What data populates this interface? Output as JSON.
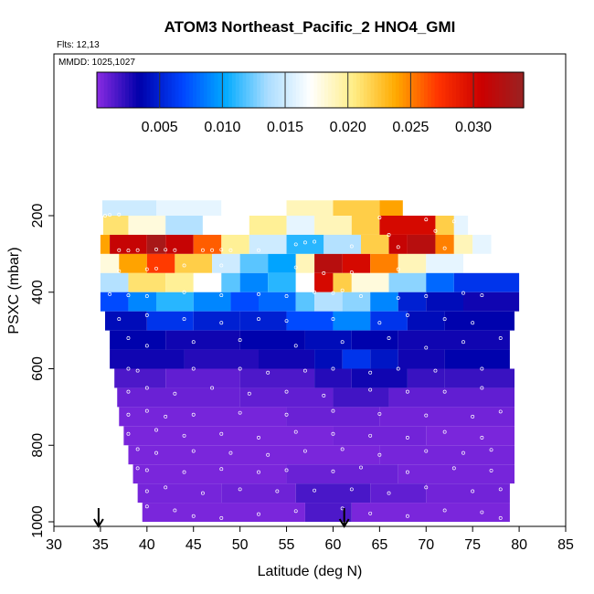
{
  "chart_data": {
    "type": "heatmap",
    "title": "ATOM3 Northeast_Pacific_2 HNO4_GMI",
    "annotations": {
      "flights": "Flts: 12,13",
      "dates": "MMDD: 1025,1027"
    },
    "xlabel": "Latitude (deg N)",
    "ylabel": "PSXC (mbar)",
    "xlim": [
      30,
      85
    ],
    "ylim": [
      1000,
      40
    ],
    "y_reversed": true,
    "x_ticks": [
      30,
      35,
      40,
      45,
      50,
      55,
      60,
      65,
      70,
      75,
      80,
      85
    ],
    "x_tick_labels": [
      "30",
      "35",
      "40",
      "45",
      "50",
      "55",
      "60",
      "65",
      "70",
      "75",
      "80",
      "85"
    ],
    "y_ticks": [
      200,
      400,
      600,
      800,
      1000
    ],
    "y_tick_labels": [
      "200",
      "400",
      "600",
      "800",
      "1000"
    ],
    "colorbar": {
      "range": [
        0,
        0.034
      ],
      "ticks": [
        0.005,
        0.01,
        0.015,
        0.02,
        0.025,
        0.03
      ],
      "tick_labels": [
        "0.005",
        "0.010",
        "0.015",
        "0.020",
        "0.025",
        "0.030"
      ],
      "colors": [
        "#8a2be2",
        "#0000aa",
        "#0044ff",
        "#00aaff",
        "#aaddff",
        "#ffffff",
        "#ffee88",
        "#ffaa00",
        "#ff3300",
        "#cc0000",
        "#992222"
      ]
    },
    "arrows_at_latitude": [
      34.8,
      61.2
    ],
    "rows": [
      {
        "p_top": 160,
        "p_bot": 200,
        "segments": [
          [
            35.2,
            41,
            0.015
          ],
          [
            41,
            48,
            0.016
          ],
          [
            48,
            55,
            0.017
          ],
          [
            55,
            60,
            0.019
          ],
          [
            60,
            65,
            0.022
          ],
          [
            65,
            67.5,
            0.024
          ]
        ]
      },
      {
        "p_top": 200,
        "p_bot": 250,
        "segments": [
          [
            35.3,
            38,
            0.021
          ],
          [
            38,
            42,
            0.018
          ],
          [
            42,
            46,
            0.014
          ],
          [
            46,
            51,
            0.017
          ],
          [
            51,
            55,
            0.02
          ],
          [
            55,
            58,
            0.016
          ],
          [
            58,
            62,
            0.019
          ],
          [
            62,
            65,
            0.022
          ],
          [
            65,
            71,
            0.03
          ],
          [
            71,
            73,
            0.022
          ],
          [
            73,
            74.5,
            0.016
          ]
        ]
      },
      {
        "p_top": 250,
        "p_bot": 300,
        "segments": [
          [
            35,
            36,
            0.024
          ],
          [
            36,
            40,
            0.031
          ],
          [
            40,
            42,
            0.033
          ],
          [
            42,
            45,
            0.031
          ],
          [
            45,
            48,
            0.026
          ],
          [
            48,
            51,
            0.02
          ],
          [
            51,
            55,
            0.015
          ],
          [
            55,
            59,
            0.011
          ],
          [
            59,
            63,
            0.014
          ],
          [
            63,
            66,
            0.022
          ],
          [
            66,
            68,
            0.031
          ],
          [
            68,
            71,
            0.032
          ],
          [
            71,
            73,
            0.025
          ],
          [
            73,
            75,
            0.019
          ],
          [
            75,
            77,
            0.016
          ]
        ]
      },
      {
        "p_top": 300,
        "p_bot": 350,
        "segments": [
          [
            35,
            37,
            0.018
          ],
          [
            37,
            40,
            0.024
          ],
          [
            40,
            43,
            0.027
          ],
          [
            43,
            47,
            0.022
          ],
          [
            47,
            50,
            0.015
          ],
          [
            50,
            53,
            0.012
          ],
          [
            53,
            56,
            0.01
          ],
          [
            56,
            58,
            0.019
          ],
          [
            58,
            61,
            0.032
          ],
          [
            61,
            64,
            0.03
          ],
          [
            64,
            67,
            0.025
          ],
          [
            67,
            70,
            0.019
          ],
          [
            70,
            74,
            0.016
          ],
          [
            74,
            80,
            0.017
          ]
        ]
      },
      {
        "p_top": 350,
        "p_bot": 400,
        "segments": [
          [
            35,
            38,
            0.014
          ],
          [
            38,
            42,
            0.021
          ],
          [
            42,
            45,
            0.02
          ],
          [
            45,
            48,
            0.017
          ],
          [
            48,
            50,
            0.012
          ],
          [
            50,
            53,
            0.009
          ],
          [
            53,
            56,
            0.011
          ],
          [
            56,
            58,
            0.017
          ],
          [
            58,
            60,
            0.03
          ],
          [
            60,
            62,
            0.022
          ],
          [
            62,
            66,
            0.018
          ],
          [
            66,
            70,
            0.013
          ],
          [
            70,
            73,
            0.008
          ],
          [
            73,
            80,
            0.006
          ]
        ]
      },
      {
        "p_top": 400,
        "p_bot": 450,
        "segments": [
          [
            35,
            38,
            0.007
          ],
          [
            38,
            41,
            0.009
          ],
          [
            41,
            45,
            0.011
          ],
          [
            45,
            49,
            0.009
          ],
          [
            49,
            52,
            0.007
          ],
          [
            52,
            56,
            0.008
          ],
          [
            56,
            58,
            0.012
          ],
          [
            58,
            61,
            0.014
          ],
          [
            61,
            64,
            0.013
          ],
          [
            64,
            67,
            0.009
          ],
          [
            67,
            70,
            0.005
          ],
          [
            70,
            74,
            0.004
          ],
          [
            74,
            80,
            0.003
          ]
        ]
      },
      {
        "p_top": 450,
        "p_bot": 500,
        "segments": [
          [
            35.5,
            40,
            0.004
          ],
          [
            40,
            45,
            0.006
          ],
          [
            45,
            50,
            0.005
          ],
          [
            50,
            55,
            0.005
          ],
          [
            55,
            60,
            0.007
          ],
          [
            60,
            64,
            0.009
          ],
          [
            64,
            68,
            0.006
          ],
          [
            68,
            72,
            0.004
          ],
          [
            72,
            79.5,
            0.0035
          ]
        ]
      },
      {
        "p_top": 500,
        "p_bot": 550,
        "segments": [
          [
            36,
            42,
            0.0035
          ],
          [
            42,
            50,
            0.003
          ],
          [
            50,
            57,
            0.0035
          ],
          [
            57,
            62,
            0.004
          ],
          [
            62,
            67,
            0.0035
          ],
          [
            67,
            79,
            0.003
          ]
        ]
      },
      {
        "p_top": 550,
        "p_bot": 600,
        "segments": [
          [
            36,
            44,
            0.003
          ],
          [
            44,
            52,
            0.0025
          ],
          [
            52,
            58,
            0.003
          ],
          [
            58,
            61,
            0.004
          ],
          [
            61,
            64,
            0.006
          ],
          [
            64,
            67,
            0.0045
          ],
          [
            67,
            72,
            0.003
          ],
          [
            72,
            79,
            0.0035
          ]
        ]
      },
      {
        "p_top": 600,
        "p_bot": 650,
        "segments": [
          [
            36.5,
            42,
            0.0015
          ],
          [
            42,
            50,
            0.001
          ],
          [
            50,
            58,
            0.0015
          ],
          [
            58,
            62,
            0.0025
          ],
          [
            62,
            68,
            0.003
          ],
          [
            68,
            72,
            0.002
          ],
          [
            72,
            79.5,
            0.002
          ]
        ]
      },
      {
        "p_top": 650,
        "p_bot": 700,
        "segments": [
          [
            36.8,
            50,
            0.0008
          ],
          [
            50,
            60,
            0.001
          ],
          [
            60,
            66,
            0.0018
          ],
          [
            66,
            79.5,
            0.001
          ]
        ]
      },
      {
        "p_top": 700,
        "p_bot": 750,
        "segments": [
          [
            37,
            55,
            0.0005
          ],
          [
            55,
            65,
            0.0008
          ],
          [
            65,
            79.5,
            0.0006
          ]
        ]
      },
      {
        "p_top": 750,
        "p_bot": 800,
        "segments": [
          [
            37.5,
            60,
            0.0004
          ],
          [
            60,
            70,
            0.0006
          ],
          [
            70,
            79.5,
            0.0004
          ]
        ]
      },
      {
        "p_top": 800,
        "p_bot": 850,
        "segments": [
          [
            38,
            65,
            0.0004
          ],
          [
            65,
            79.5,
            0.0005
          ]
        ]
      },
      {
        "p_top": 850,
        "p_bot": 900,
        "segments": [
          [
            38.5,
            55,
            0.0004
          ],
          [
            55,
            67,
            0.0008
          ],
          [
            67,
            79.5,
            0.0005
          ]
        ]
      },
      {
        "p_top": 900,
        "p_bot": 950,
        "segments": [
          [
            39,
            48,
            0.0005
          ],
          [
            48,
            56,
            0.0007
          ],
          [
            56,
            64,
            0.0016
          ],
          [
            64,
            70,
            0.001
          ],
          [
            70,
            79,
            0.0006
          ]
        ]
      },
      {
        "p_top": 950,
        "p_bot": 1000,
        "segments": [
          [
            39.5,
            57,
            0.0004
          ],
          [
            57,
            62,
            0.0015
          ],
          [
            62,
            79,
            0.0004
          ]
        ]
      }
    ],
    "sample_points": [
      [
        35.5,
        200
      ],
      [
        36,
        198
      ],
      [
        37,
        197
      ],
      [
        65,
        205
      ],
      [
        70,
        210
      ],
      [
        73,
        215
      ],
      [
        71,
        240
      ],
      [
        66,
        250
      ],
      [
        37,
        290
      ],
      [
        38,
        291
      ],
      [
        39,
        290
      ],
      [
        41,
        288
      ],
      [
        42,
        289
      ],
      [
        43,
        290
      ],
      [
        46,
        290
      ],
      [
        47,
        290
      ],
      [
        48,
        289
      ],
      [
        49,
        290
      ],
      [
        52,
        290
      ],
      [
        57,
        270
      ],
      [
        58,
        268
      ],
      [
        56,
        275
      ],
      [
        62,
        280
      ],
      [
        67,
        282
      ],
      [
        72,
        285
      ],
      [
        37,
        345
      ],
      [
        40,
        340
      ],
      [
        41,
        338
      ],
      [
        44,
        330
      ],
      [
        48,
        330
      ],
      [
        56,
        335
      ],
      [
        59,
        350
      ],
      [
        62,
        348
      ],
      [
        67,
        340
      ],
      [
        75,
        340
      ],
      [
        78,
        330
      ],
      [
        36,
        405
      ],
      [
        38,
        408
      ],
      [
        40,
        410
      ],
      [
        44,
        400
      ],
      [
        48,
        408
      ],
      [
        52,
        405
      ],
      [
        55,
        410
      ],
      [
        58,
        400
      ],
      [
        60,
        402
      ],
      [
        61,
        395
      ],
      [
        63,
        410
      ],
      [
        67,
        415
      ],
      [
        70,
        410
      ],
      [
        74,
        402
      ],
      [
        76,
        408
      ],
      [
        37,
        470
      ],
      [
        40,
        460
      ],
      [
        44,
        470
      ],
      [
        48,
        480
      ],
      [
        52,
        470
      ],
      [
        55,
        475
      ],
      [
        60,
        470
      ],
      [
        65,
        480
      ],
      [
        68,
        460
      ],
      [
        72,
        470
      ],
      [
        75,
        480
      ],
      [
        38,
        520
      ],
      [
        40,
        540
      ],
      [
        45,
        530
      ],
      [
        50,
        525
      ],
      [
        56,
        540
      ],
      [
        61,
        530
      ],
      [
        66,
        520
      ],
      [
        70,
        545
      ],
      [
        74,
        530
      ],
      [
        78,
        520
      ],
      [
        38,
        600
      ],
      [
        39,
        605
      ],
      [
        45,
        600
      ],
      [
        50,
        600
      ],
      [
        53,
        610
      ],
      [
        57,
        605
      ],
      [
        60,
        600
      ],
      [
        64,
        610
      ],
      [
        67,
        600
      ],
      [
        71,
        605
      ],
      [
        76,
        600
      ],
      [
        38,
        660
      ],
      [
        40,
        650
      ],
      [
        43,
        665
      ],
      [
        47,
        650
      ],
      [
        51,
        665
      ],
      [
        55,
        660
      ],
      [
        59,
        670
      ],
      [
        64,
        655
      ],
      [
        68,
        660
      ],
      [
        72,
        660
      ],
      [
        76,
        650
      ],
      [
        38,
        720
      ],
      [
        40,
        710
      ],
      [
        42,
        725
      ],
      [
        45,
        720
      ],
      [
        50,
        715
      ],
      [
        55,
        720
      ],
      [
        60,
        710
      ],
      [
        65,
        718
      ],
      [
        70,
        722
      ],
      [
        75,
        725
      ],
      [
        78,
        712
      ],
      [
        38,
        770
      ],
      [
        41,
        760
      ],
      [
        44,
        775
      ],
      [
        48,
        770
      ],
      [
        52,
        780
      ],
      [
        56,
        765
      ],
      [
        60,
        770
      ],
      [
        64,
        775
      ],
      [
        68,
        780
      ],
      [
        72,
        765
      ],
      [
        76,
        780
      ],
      [
        39,
        810
      ],
      [
        41,
        820
      ],
      [
        45,
        815
      ],
      [
        49,
        820
      ],
      [
        53,
        825
      ],
      [
        57,
        815
      ],
      [
        61,
        810
      ],
      [
        65,
        825
      ],
      [
        70,
        815
      ],
      [
        74,
        820
      ],
      [
        77,
        812
      ],
      [
        39,
        860
      ],
      [
        40,
        865
      ],
      [
        44,
        870
      ],
      [
        48,
        862
      ],
      [
        52,
        870
      ],
      [
        55,
        865
      ],
      [
        60,
        868
      ],
      [
        63,
        858
      ],
      [
        68,
        870
      ],
      [
        73,
        860
      ],
      [
        77,
        866
      ],
      [
        40,
        920
      ],
      [
        42,
        910
      ],
      [
        46,
        925
      ],
      [
        50,
        915
      ],
      [
        54,
        920
      ],
      [
        58,
        918
      ],
      [
        62,
        915
      ],
      [
        66,
        925
      ],
      [
        70,
        910
      ],
      [
        75,
        920
      ],
      [
        78,
        915
      ],
      [
        40,
        960
      ],
      [
        43,
        970
      ],
      [
        45,
        985
      ],
      [
        48,
        990
      ],
      [
        52,
        980
      ],
      [
        56,
        972
      ],
      [
        61,
        965
      ],
      [
        64,
        978
      ],
      [
        68,
        985
      ],
      [
        72,
        970
      ],
      [
        76,
        975
      ],
      [
        78,
        990
      ]
    ]
  }
}
